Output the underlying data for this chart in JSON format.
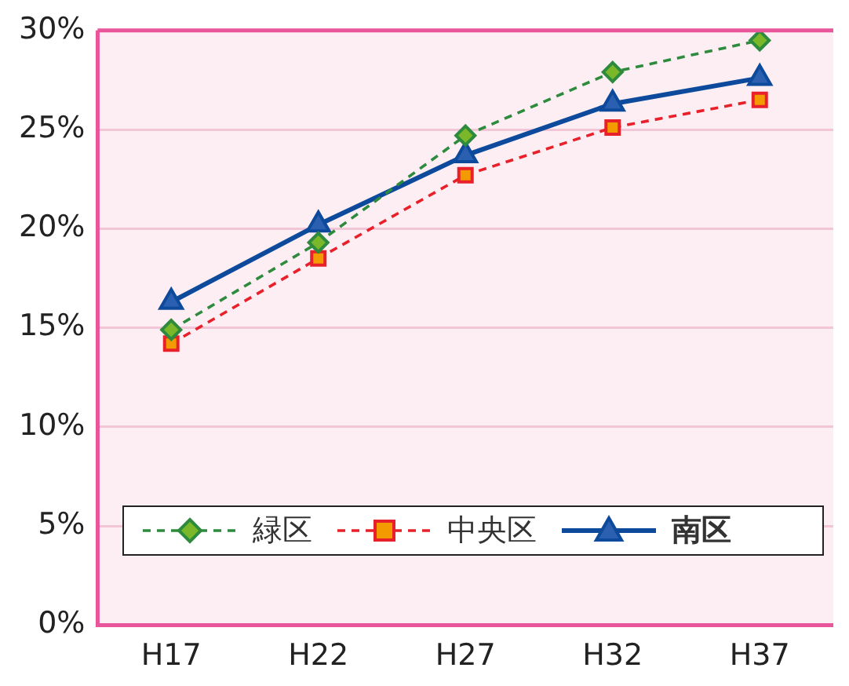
{
  "chart_data": {
    "type": "line",
    "categories": [
      "H17",
      "H22",
      "H27",
      "H32",
      "H37"
    ],
    "series": [
      {
        "name": "緑区",
        "color": "#2e8b3e",
        "values": [
          14.9,
          19.3,
          24.7,
          27.9,
          29.5
        ],
        "marker": "diamond",
        "line_style": "dashed"
      },
      {
        "name": "中央区",
        "color": "#e8202a",
        "values": [
          14.2,
          18.5,
          22.7,
          25.1,
          26.5
        ],
        "marker": "square",
        "line_style": "dashed"
      },
      {
        "name": "南区",
        "color": "#0d4a9c",
        "values": [
          16.3,
          20.2,
          23.7,
          26.3,
          27.6
        ],
        "marker": "triangle",
        "line_style": "solid"
      }
    ],
    "ylim": [
      0,
      30
    ],
    "yticks": [
      {
        "value": 0,
        "label": "0%"
      },
      {
        "value": 5,
        "label": "5%"
      },
      {
        "value": 10,
        "label": "10%"
      },
      {
        "value": 15,
        "label": "15%"
      },
      {
        "value": 20,
        "label": "20%"
      },
      {
        "value": 25,
        "label": "25%"
      },
      {
        "value": 30,
        "label": "30%"
      }
    ],
    "grid": "y",
    "legend": "bottom"
  }
}
